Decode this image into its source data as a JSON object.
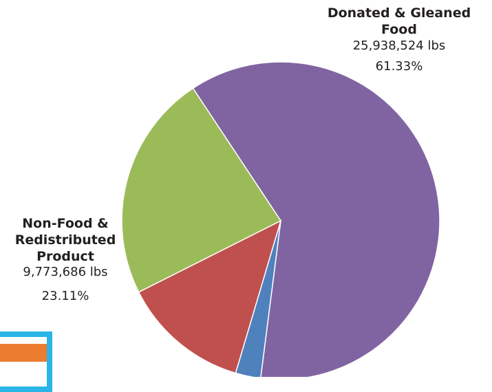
{
  "chart_data": {
    "type": "pie",
    "title": "",
    "slices": [
      {
        "name": "Donated & Gleaned Food",
        "value": 25938524,
        "value_label": "25,938,524 lbs",
        "percent": 61.33,
        "percent_label": "61.33%",
        "color": "#8064a2"
      },
      {
        "name": "",
        "value_label": "",
        "percent": 2.56,
        "color": "#4f81bd"
      },
      {
        "name": "",
        "value_label": "",
        "percent": 13.0,
        "color": "#c0504d"
      },
      {
        "name": "Non-Food & Redistributed Product",
        "value": 9773686,
        "value_label": "9,773,686 lbs",
        "percent": 23.11,
        "percent_label": "23.11%",
        "color": "#9bbb59"
      }
    ],
    "start_angle_deg": -33.5,
    "direction": "clockwise"
  },
  "labels": {
    "donated": {
      "name": "Donated & Gleaned Food",
      "value": "25,938,524 lbs",
      "percent": "61.33%"
    },
    "nonfood": {
      "name": "Non-Food & Redistributed Product",
      "value": "9,773,686 lbs",
      "percent": "23.11%"
    }
  },
  "decor": {
    "frame_color": "#29b6e6",
    "bar_color": "#ec7c30"
  }
}
